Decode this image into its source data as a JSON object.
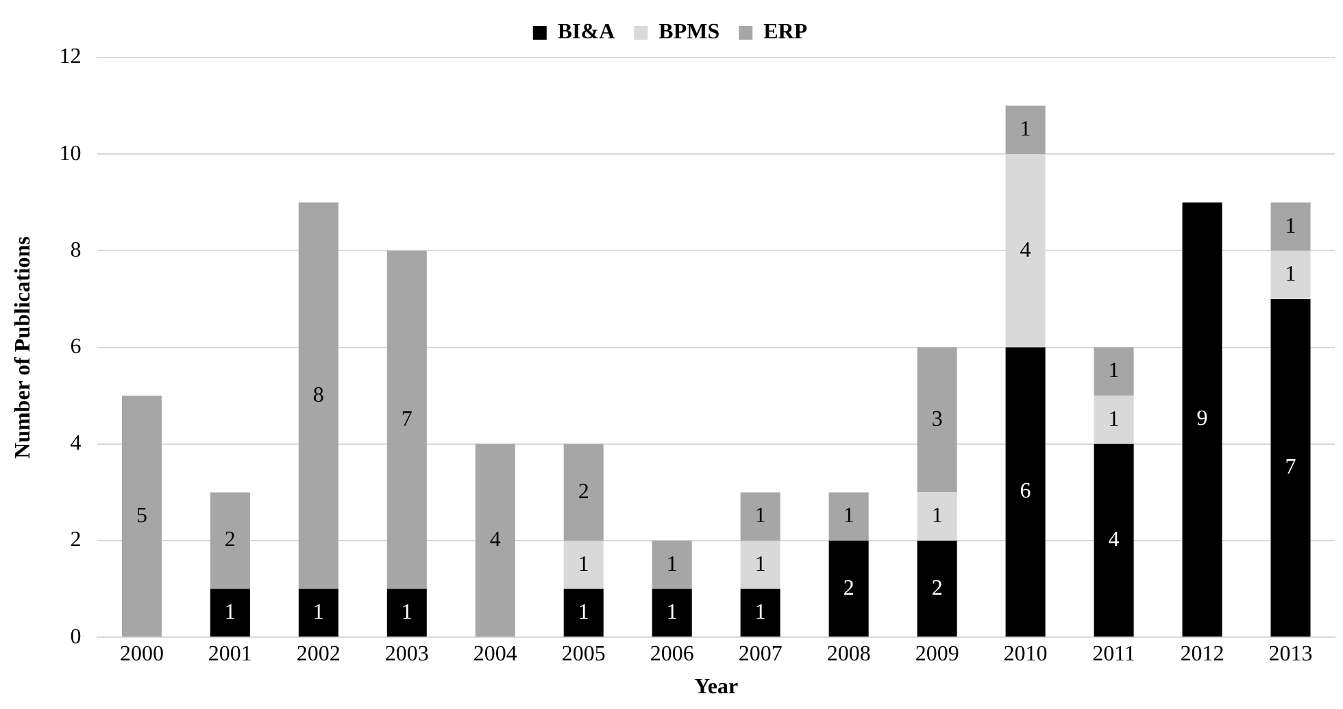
{
  "chart_data": {
    "type": "bar",
    "stacked": true,
    "xlabel": "Year",
    "ylabel": "Number of Publications",
    "categories": [
      "2000",
      "2001",
      "2002",
      "2003",
      "2004",
      "2005",
      "2006",
      "2007",
      "2008",
      "2009",
      "2010",
      "2011",
      "2012",
      "2013"
    ],
    "series": [
      {
        "name": "BI&A",
        "color": "#000000",
        "values": [
          0,
          1,
          1,
          1,
          0,
          1,
          1,
          1,
          2,
          2,
          6,
          4,
          9,
          7
        ],
        "value_labels": [
          null,
          "1",
          "1",
          "1",
          null,
          "1",
          "1",
          "1",
          "2",
          "2",
          "6",
          "4",
          "9",
          "7"
        ]
      },
      {
        "name": "BPMS",
        "color": "#d9d9d9",
        "values": [
          0,
          0,
          0,
          0,
          0,
          1,
          0,
          1,
          0,
          1,
          4,
          1,
          0,
          1
        ],
        "value_labels": [
          null,
          null,
          null,
          null,
          null,
          "1",
          null,
          "1",
          null,
          "1",
          "4",
          "1",
          null,
          "1"
        ]
      },
      {
        "name": "ERP",
        "color": "#a6a6a6",
        "values": [
          5,
          2,
          8,
          7,
          4,
          2,
          1,
          1,
          1,
          3,
          1,
          1,
          0,
          1
        ],
        "value_labels": [
          "5",
          "2",
          "8",
          "7",
          "4",
          "2",
          "1",
          "1",
          "1",
          "3",
          "1",
          "1",
          null,
          "1"
        ]
      }
    ],
    "ylim": [
      0,
      12
    ],
    "yticks": [
      0,
      2,
      4,
      6,
      8,
      10,
      12
    ],
    "grid": "y",
    "legend": "top"
  }
}
